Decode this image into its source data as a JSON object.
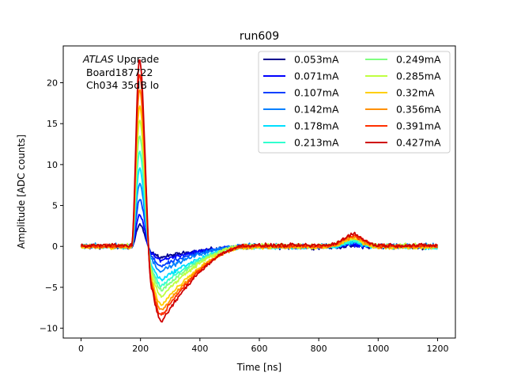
{
  "chart_data": {
    "type": "line",
    "title": "run609",
    "xlabel": "Time [ns]",
    "ylabel": "Amplitude [ADC counts]",
    "xlim": [
      -60,
      1260
    ],
    "ylim": [
      -11.2,
      24.5
    ],
    "xticks": [
      0,
      200,
      400,
      600,
      800,
      1000,
      1200
    ],
    "yticks": [
      -10,
      -5,
      0,
      5,
      10,
      15,
      20
    ],
    "ytick_labels": [
      "−10",
      "−5",
      "0",
      "5",
      "10",
      "15",
      "20"
    ],
    "annotation": {
      "line1_italic": "ATLAS",
      "line1_rest": " Upgrade",
      "line2": "Board187722",
      "line3": "Ch034 35dB lo"
    },
    "legend_position": "top-right",
    "legend_columns": 2,
    "pulse_shape": {
      "t0": 170,
      "rise_peak_time": 197,
      "undershoot_time": 272,
      "recovery_time": 560,
      "bump_center_time": 915,
      "peak_per_unit": 53.0,
      "undershoot_per_unit": -21.5,
      "bump_per_unit": 3.0
    },
    "series": [
      {
        "name": "0.053mA",
        "current_mA": 0.053,
        "color": "#00008f",
        "peak": 2.8,
        "min": -1.2
      },
      {
        "name": "0.071mA",
        "current_mA": 0.071,
        "color": "#0000ff",
        "peak": 3.8,
        "min": -1.6
      },
      {
        "name": "0.107mA",
        "current_mA": 0.107,
        "color": "#0040ff",
        "peak": 5.7,
        "min": -2.4
      },
      {
        "name": "0.142mA",
        "current_mA": 0.142,
        "color": "#0080ff",
        "peak": 7.6,
        "min": -3.1
      },
      {
        "name": "0.178mA",
        "current_mA": 0.178,
        "color": "#00dfff",
        "peak": 9.6,
        "min": -3.9
      },
      {
        "name": "0.213mA",
        "current_mA": 0.213,
        "color": "#30ffcf",
        "peak": 11.5,
        "min": -4.7
      },
      {
        "name": "0.249mA",
        "current_mA": 0.249,
        "color": "#80ff80",
        "peak": 13.4,
        "min": -5.4
      },
      {
        "name": "0.285mA",
        "current_mA": 0.285,
        "color": "#bfff40",
        "peak": 15.3,
        "min": -6.2
      },
      {
        "name": "0.32mA",
        "current_mA": 0.32,
        "color": "#ffcf00",
        "peak": 17.2,
        "min": -7.0
      },
      {
        "name": "0.356mA",
        "current_mA": 0.356,
        "color": "#ff9000",
        "peak": 19.2,
        "min": -7.8
      },
      {
        "name": "0.391mA",
        "current_mA": 0.391,
        "color": "#ff3000",
        "peak": 21.0,
        "min": -8.5
      },
      {
        "name": "0.427mA",
        "current_mA": 0.427,
        "color": "#cf0000",
        "peak": 22.8,
        "min": -9.3
      }
    ]
  }
}
